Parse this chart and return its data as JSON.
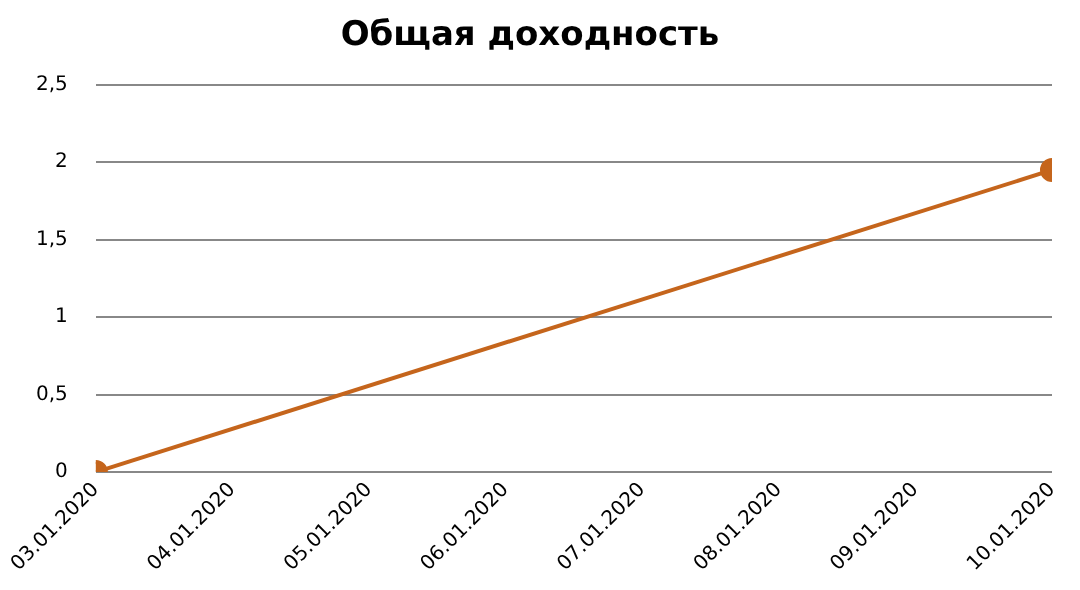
{
  "chart_data": {
    "type": "line",
    "title": "Общая доходность",
    "x": [
      "2020-01-03",
      "2020-01-10"
    ],
    "xlim": [
      "2020-01-03",
      "2020-01-10"
    ],
    "xticks": [
      {
        "value": "2020-01-03",
        "label": "03.01.2020"
      },
      {
        "value": "2020-01-04",
        "label": "04.01.2020"
      },
      {
        "value": "2020-01-05",
        "label": "05.01.2020"
      },
      {
        "value": "2020-01-06",
        "label": "06.01.2020"
      },
      {
        "value": "2020-01-07",
        "label": "07.01.2020"
      },
      {
        "value": "2020-01-08",
        "label": "08.01.2020"
      },
      {
        "value": "2020-01-09",
        "label": "09.01.2020"
      },
      {
        "value": "2020-01-10",
        "label": "10.01.2020"
      }
    ],
    "series": [
      {
        "color": "#c5651c",
        "values": [
          0,
          1.95
        ]
      }
    ],
    "ylim": [
      0,
      2.5
    ],
    "yticks": [
      0,
      {
        "value": 0.5,
        "label": "0,5"
      },
      1,
      {
        "value": 1.5,
        "label": "1,5"
      },
      2,
      {
        "value": 2.5,
        "label": "2,5"
      }
    ],
    "grid": "y",
    "marker": "circle",
    "line_style": "solid",
    "legend": false
  }
}
